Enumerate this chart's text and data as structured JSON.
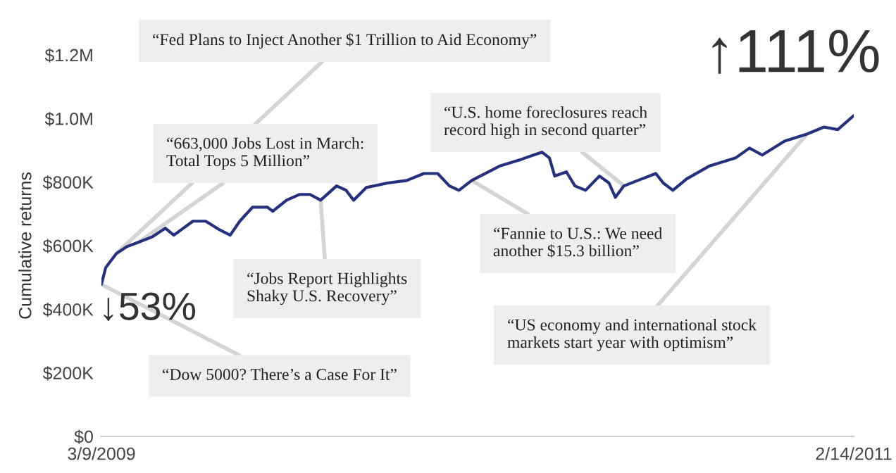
{
  "chart_data": {
    "type": "line",
    "ylabel": "Cumulative returns",
    "x": [
      "2009-03-09",
      "2009-03-13",
      "2009-03-23",
      "2009-04-02",
      "2009-04-13",
      "2009-04-26",
      "2009-05-08",
      "2009-05-16",
      "2009-06-03",
      "2009-06-15",
      "2009-06-28",
      "2009-07-08",
      "2009-07-17",
      "2009-07-29",
      "2009-08-12",
      "2009-08-17",
      "2009-08-30",
      "2009-09-11",
      "2009-09-21",
      "2009-10-01",
      "2009-10-16",
      "2009-10-25",
      "2009-11-01",
      "2009-11-13",
      "2009-12-03",
      "2009-12-21",
      "2010-01-06",
      "2010-01-19",
      "2010-01-30",
      "2010-02-08",
      "2010-02-20",
      "2010-03-18",
      "2010-04-08",
      "2010-04-27",
      "2010-05-04",
      "2010-05-09",
      "2010-05-20",
      "2010-05-28",
      "2010-06-07",
      "2010-06-20",
      "2010-06-29",
      "2010-07-05",
      "2010-07-13",
      "2010-07-30",
      "2010-08-12",
      "2010-08-19",
      "2010-08-28",
      "2010-09-10",
      "2010-10-01",
      "2010-10-26",
      "2010-11-08",
      "2010-11-20",
      "2010-12-11",
      "2011-01-01",
      "2011-01-17",
      "2011-01-30",
      "2011-02-14"
    ],
    "series": [
      {
        "color": "#23317f",
        "values": [
          478000,
          531000,
          575000,
          597000,
          611000,
          628000,
          655000,
          633000,
          677000,
          677000,
          650000,
          633000,
          677000,
          721000,
          721000,
          708000,
          743000,
          761000,
          761000,
          743000,
          788000,
          774000,
          743000,
          783000,
          797000,
          805000,
          827000,
          827000,
          788000,
          774000,
          805000,
          850000,
          872000,
          894000,
          876000,
          819000,
          832000,
          788000,
          774000,
          819000,
          797000,
          752000,
          788000,
          810000,
          827000,
          797000,
          774000,
          810000,
          850000,
          876000,
          907000,
          885000,
          929000,
          951000,
          973000,
          965000,
          1009000
        ]
      }
    ],
    "xlim": [
      "2009-03-09",
      "2011-02-14"
    ],
    "xticks": [
      {
        "value": "2009-03-09",
        "label": "3/9/2009"
      },
      {
        "value": "2011-02-14",
        "label": "2/14/2011"
      }
    ],
    "ylim": [
      0,
      1200000
    ],
    "yticks": [
      {
        "value": 0,
        "label": "$0"
      },
      {
        "value": 200000,
        "label": "$200K"
      },
      {
        "value": 400000,
        "label": "$400K"
      },
      {
        "value": 600000,
        "label": "$600K"
      },
      {
        "value": 800000,
        "label": "$800K"
      },
      {
        "value": 1000000,
        "label": "$1.0M"
      },
      {
        "value": 1200000,
        "label": "$1.2M"
      }
    ],
    "grid": false,
    "legend": false,
    "line_style": "solid",
    "annotations": [
      {
        "text": "“Fed Plans to Inject Another $1 Trillion to Aid Economy”",
        "x": "2009-03-23",
        "y": 575000
      },
      {
        "text": "“663,000 Jobs Lost in March:\nTotal Tops 5 Million”",
        "x": "2009-04-13",
        "y": 611000
      },
      {
        "text": "“U.S. home foreclosures reach\nrecord high in second quarter”",
        "x": "2010-07-13",
        "y": 788000
      },
      {
        "text": "“Jobs Report Highlights\nShaky U.S. Recovery”",
        "x": "2009-10-01",
        "y": 743000
      },
      {
        "text": "“Fannie to U.S.: We need\nanother $15.3 billion”",
        "x": "2010-02-20",
        "y": 805000
      },
      {
        "text": "“US economy and international stock\nmarkets start year with optimism”",
        "x": "2011-01-01",
        "y": 951000
      },
      {
        "text": "“Dow 5000? There’s a Case For It”",
        "x": "2009-03-09",
        "y": 478000
      },
      "↓53%",
      "↑111%"
    ]
  }
}
